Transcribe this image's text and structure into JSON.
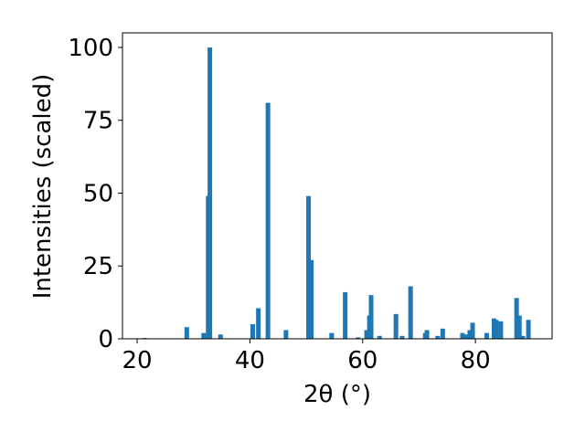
{
  "chart_data": {
    "type": "bar",
    "x_label": "2θ (°)",
    "y_label": "Intensities (scaled)",
    "color": "#1f77b4",
    "x": [
      21.3,
      28.8,
      31.8,
      32.6,
      32.9,
      34.8,
      40.5,
      41.5,
      43.2,
      46.4,
      50.4,
      50.9,
      54.5,
      56.9,
      59.2,
      60.7,
      61.2,
      61.5,
      63.0,
      65.9,
      67.0,
      68.5,
      71.1,
      71.4,
      73.3,
      74.2,
      77.7,
      78.5,
      79.0,
      79.5,
      82.0,
      83.3,
      83.7,
      84.5,
      87.3,
      87.8,
      88.4,
      89.4
    ],
    "values": [
      0.3,
      4,
      2,
      49,
      100,
      1.5,
      5,
      10.5,
      81,
      3,
      49,
      27,
      2,
      16,
      0.5,
      3,
      8,
      15,
      1,
      8.5,
      1,
      18,
      2,
      3,
      1,
      3.5,
      2,
      1.5,
      3,
      5.5,
      2,
      7,
      6.5,
      6,
      14,
      8,
      1,
      6.5
    ],
    "xlim": [
      17.4,
      93.6
    ],
    "ylim": [
      0,
      105
    ],
    "xticks": [
      20,
      40,
      60,
      80
    ],
    "yticks": [
      0,
      25,
      50,
      75,
      100
    ]
  }
}
